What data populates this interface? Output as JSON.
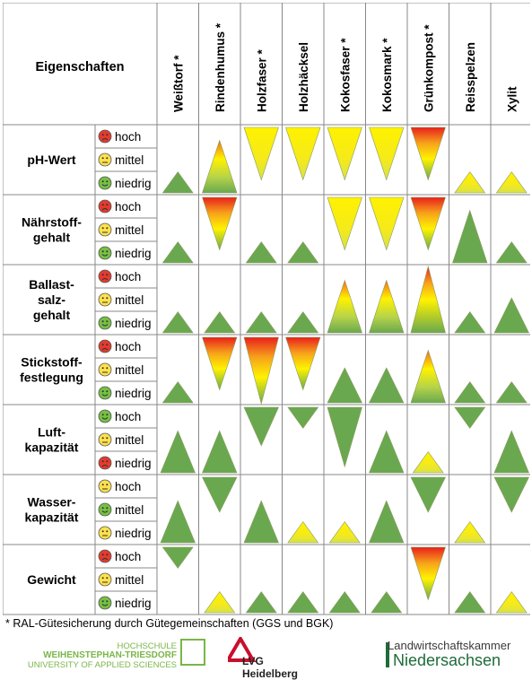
{
  "header": {
    "properties_label": "Eigenschaften"
  },
  "materials": [
    "Weißtorf *",
    "Rindenhumus *",
    "Holzfaser *",
    "Holzhäcksel",
    "Kokosfaser *",
    "Kokosmark *",
    "Grünkompost *",
    "Reisspelzen",
    "Xylit"
  ],
  "properties": [
    {
      "name": [
        "pH-Wert"
      ],
      "levels": [
        [
          "sad",
          "hoch"
        ],
        [
          "neutral",
          "mittel"
        ],
        [
          "happy",
          "niedrig"
        ]
      ],
      "tri": [
        [
          "up",
          "green",
          0.3
        ],
        [
          "up",
          "orange",
          0.75
        ],
        [
          "down",
          "yellow",
          0.75
        ],
        [
          "down",
          "yellow",
          0.75
        ],
        [
          "down",
          "yellow",
          0.75
        ],
        [
          "down",
          "yellow",
          0.75
        ],
        [
          "down",
          "red",
          0.75
        ],
        [
          "up",
          "yellow",
          0.3
        ],
        [
          "up",
          "yellow",
          0.3
        ]
      ]
    },
    {
      "name": [
        "Nährstoff-",
        "gehalt"
      ],
      "levels": [
        [
          "sad",
          "hoch"
        ],
        [
          "neutral",
          "mittel"
        ],
        [
          "happy",
          "niedrig"
        ]
      ],
      "tri": [
        [
          "up",
          "green",
          0.3
        ],
        [
          "down",
          "red",
          0.75
        ],
        [
          "up",
          "green",
          0.3
        ],
        [
          "up",
          "green",
          0.3
        ],
        [
          "down",
          "yellow",
          0.75
        ],
        [
          "down",
          "yellow",
          0.75
        ],
        [
          "down",
          "red",
          0.75
        ],
        [
          "up",
          "green",
          0.75
        ],
        [
          "up",
          "green",
          0.3
        ]
      ]
    },
    {
      "name": [
        "Ballast-",
        "salz-",
        "gehalt"
      ],
      "levels": [
        [
          "sad",
          "hoch"
        ],
        [
          "neutral",
          "mittel"
        ],
        [
          "happy",
          "niedrig"
        ]
      ],
      "tri": [
        [
          "up",
          "green",
          0.3
        ],
        [
          "up",
          "green",
          0.3
        ],
        [
          "up",
          "green",
          0.3
        ],
        [
          "up",
          "green",
          0.3
        ],
        [
          "up",
          "orange",
          0.75
        ],
        [
          "up",
          "orange",
          0.75
        ],
        [
          "up",
          "red",
          0.95
        ],
        [
          "up",
          "green",
          0.3
        ],
        [
          "up",
          "green",
          0.5
        ]
      ]
    },
    {
      "name": [
        "Stickstoff-",
        "festlegung"
      ],
      "levels": [
        [
          "sad",
          "hoch"
        ],
        [
          "neutral",
          "mittel"
        ],
        [
          "happy",
          "niedrig"
        ]
      ],
      "tri": [
        [
          "up",
          "green",
          0.3
        ],
        [
          "down",
          "red",
          0.75
        ],
        [
          "down",
          "red",
          0.95
        ],
        [
          "down",
          "red",
          0.75
        ],
        [
          "up",
          "green",
          0.5
        ],
        [
          "up",
          "green",
          0.5
        ],
        [
          "up",
          "orange",
          0.75
        ],
        [
          "up",
          "green",
          0.3
        ],
        [
          "up",
          "green",
          0.3
        ]
      ]
    },
    {
      "name": [
        "Luft-",
        "kapazität"
      ],
      "levels": [
        [
          "happy",
          "hoch"
        ],
        [
          "neutral",
          "mittel"
        ],
        [
          "sad",
          "niedrig"
        ]
      ],
      "tri": [
        [
          "up",
          "green",
          0.6
        ],
        [
          "up",
          "green",
          0.6
        ],
        [
          "down",
          "green",
          0.55
        ],
        [
          "down",
          "green",
          0.3
        ],
        [
          "down",
          "green",
          0.85
        ],
        [
          "up",
          "green",
          0.6
        ],
        [
          "up",
          "yellow",
          0.3
        ],
        [
          "down",
          "green",
          0.3
        ],
        [
          "up",
          "green",
          0.6
        ]
      ]
    },
    {
      "name": [
        "Wasser-",
        "kapazität"
      ],
      "levels": [
        [
          "neutral",
          "hoch"
        ],
        [
          "happy",
          "mittel"
        ],
        [
          "neutral",
          "niedrig"
        ]
      ],
      "tri": [
        [
          "up",
          "green",
          0.6
        ],
        [
          "down",
          "green",
          0.5
        ],
        [
          "up",
          "green",
          0.6
        ],
        [
          "up",
          "yellow",
          0.3
        ],
        [
          "up",
          "yellow",
          0.3
        ],
        [
          "up",
          "green",
          0.6
        ],
        [
          "down",
          "green",
          0.5
        ],
        [
          "up",
          "yellow",
          0.3
        ],
        [
          "down",
          "green",
          0.5
        ]
      ]
    },
    {
      "name": [
        "Gewicht"
      ],
      "levels": [
        [
          "sad",
          "hoch"
        ],
        [
          "neutral",
          "mittel"
        ],
        [
          "happy",
          "niedrig"
        ]
      ],
      "tri": [
        [
          "down",
          "green",
          0.3
        ],
        [
          "up",
          "yellow",
          0.3
        ],
        [
          "up",
          "green",
          0.3
        ],
        [
          "up",
          "green",
          0.3
        ],
        [
          "up",
          "green",
          0.3
        ],
        [
          "up",
          "green",
          0.3
        ],
        [
          "down",
          "red",
          0.75
        ],
        [
          "up",
          "green",
          0.3
        ],
        [
          "up",
          "yellow",
          0.3
        ]
      ]
    }
  ],
  "footnote": "* RAL-Gütesicherung durch Gütegemeinschaften (GGS und BGK)",
  "logos": {
    "hochschule": [
      "HOCHSCHULE",
      "WEIHENSTEPHAN-TRIESDORF",
      "UNIVERSITY OF APPLIED SCIENCES"
    ],
    "lvg": "LVG Heidelberg",
    "lwk": [
      "Landwirtschaftskammer",
      "Niedersachsen"
    ]
  },
  "colors": {
    "green": "#6aa84f",
    "yellow": "#fff200",
    "orange": "#f7a21b",
    "red": "#e8201c",
    "grid": "#888888"
  }
}
